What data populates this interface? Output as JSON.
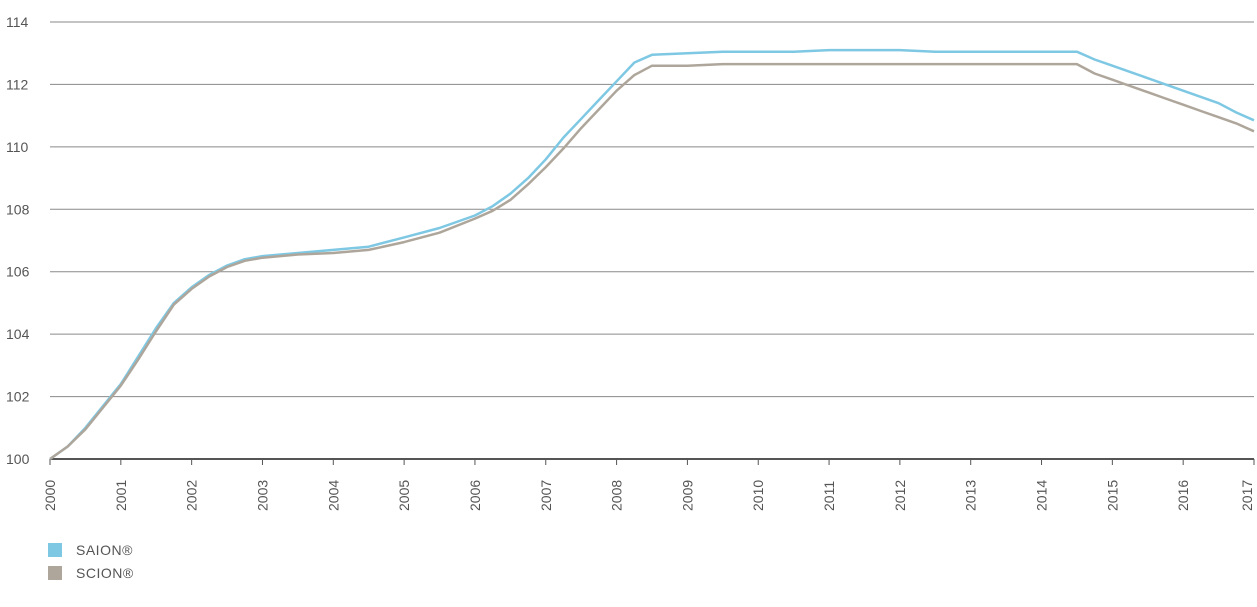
{
  "chart_data": {
    "type": "line",
    "title": "",
    "xlabel": "",
    "ylabel": "",
    "xlim": [
      2000,
      2017
    ],
    "ylim": [
      100,
      114
    ],
    "x_ticks": [
      "2000",
      "2001",
      "2002",
      "2003",
      "2004",
      "2005",
      "2006",
      "2007",
      "2008",
      "2009",
      "2010",
      "2011",
      "2012",
      "2013",
      "2014",
      "2015",
      "2016",
      "2017"
    ],
    "y_ticks": [
      "100",
      "102",
      "104",
      "106",
      "108",
      "110",
      "112",
      "114"
    ],
    "grid": "horizontal",
    "legend_position": "bottom-left",
    "series": [
      {
        "name": "SAION®",
        "color": "#7ec8e3",
        "points": [
          [
            2000.0,
            100.0
          ],
          [
            2000.25,
            100.4
          ],
          [
            2000.5,
            101.0
          ],
          [
            2000.75,
            101.7
          ],
          [
            2001.0,
            102.4
          ],
          [
            2001.25,
            103.3
          ],
          [
            2001.5,
            104.2
          ],
          [
            2001.75,
            105.0
          ],
          [
            2002.0,
            105.5
          ],
          [
            2002.25,
            105.9
          ],
          [
            2002.5,
            106.2
          ],
          [
            2002.75,
            106.4
          ],
          [
            2003.0,
            106.5
          ],
          [
            2003.5,
            106.6
          ],
          [
            2004.0,
            106.7
          ],
          [
            2004.5,
            106.8
          ],
          [
            2005.0,
            107.1
          ],
          [
            2005.5,
            107.4
          ],
          [
            2006.0,
            107.8
          ],
          [
            2006.25,
            108.1
          ],
          [
            2006.5,
            108.5
          ],
          [
            2006.75,
            109.0
          ],
          [
            2007.0,
            109.6
          ],
          [
            2007.25,
            110.3
          ],
          [
            2007.5,
            110.9
          ],
          [
            2007.75,
            111.5
          ],
          [
            2008.0,
            112.1
          ],
          [
            2008.25,
            112.7
          ],
          [
            2008.5,
            112.95
          ],
          [
            2009.0,
            113.0
          ],
          [
            2009.5,
            113.05
          ],
          [
            2010.0,
            113.05
          ],
          [
            2010.5,
            113.05
          ],
          [
            2011.0,
            113.1
          ],
          [
            2011.5,
            113.1
          ],
          [
            2012.0,
            113.1
          ],
          [
            2012.5,
            113.05
          ],
          [
            2013.0,
            113.05
          ],
          [
            2013.5,
            113.05
          ],
          [
            2014.0,
            113.05
          ],
          [
            2014.5,
            113.05
          ],
          [
            2014.75,
            112.8
          ],
          [
            2015.0,
            112.6
          ],
          [
            2015.25,
            112.4
          ],
          [
            2015.5,
            112.2
          ],
          [
            2015.75,
            112.0
          ],
          [
            2016.0,
            111.8
          ],
          [
            2016.25,
            111.6
          ],
          [
            2016.5,
            111.4
          ],
          [
            2016.75,
            111.1
          ],
          [
            2017.0,
            110.85
          ]
        ]
      },
      {
        "name": "SCION®",
        "color": "#aea69b",
        "points": [
          [
            2000.0,
            100.0
          ],
          [
            2000.25,
            100.4
          ],
          [
            2000.5,
            100.95
          ],
          [
            2000.75,
            101.65
          ],
          [
            2001.0,
            102.35
          ],
          [
            2001.25,
            103.2
          ],
          [
            2001.5,
            104.1
          ],
          [
            2001.75,
            104.95
          ],
          [
            2002.0,
            105.45
          ],
          [
            2002.25,
            105.85
          ],
          [
            2002.5,
            106.15
          ],
          [
            2002.75,
            106.35
          ],
          [
            2003.0,
            106.45
          ],
          [
            2003.5,
            106.55
          ],
          [
            2004.0,
            106.6
          ],
          [
            2004.5,
            106.7
          ],
          [
            2005.0,
            106.95
          ],
          [
            2005.5,
            107.25
          ],
          [
            2006.0,
            107.7
          ],
          [
            2006.25,
            107.95
          ],
          [
            2006.5,
            108.3
          ],
          [
            2006.75,
            108.8
          ],
          [
            2007.0,
            109.35
          ],
          [
            2007.25,
            109.95
          ],
          [
            2007.5,
            110.6
          ],
          [
            2007.75,
            111.2
          ],
          [
            2008.0,
            111.8
          ],
          [
            2008.25,
            112.3
          ],
          [
            2008.5,
            112.6
          ],
          [
            2009.0,
            112.6
          ],
          [
            2009.5,
            112.65
          ],
          [
            2010.0,
            112.65
          ],
          [
            2010.5,
            112.65
          ],
          [
            2011.0,
            112.65
          ],
          [
            2011.5,
            112.65
          ],
          [
            2012.0,
            112.65
          ],
          [
            2012.5,
            112.65
          ],
          [
            2013.0,
            112.65
          ],
          [
            2013.5,
            112.65
          ],
          [
            2014.0,
            112.65
          ],
          [
            2014.5,
            112.65
          ],
          [
            2014.75,
            112.35
          ],
          [
            2015.0,
            112.15
          ],
          [
            2015.25,
            111.95
          ],
          [
            2015.5,
            111.75
          ],
          [
            2015.75,
            111.55
          ],
          [
            2016.0,
            111.35
          ],
          [
            2016.25,
            111.15
          ],
          [
            2016.5,
            110.95
          ],
          [
            2016.75,
            110.75
          ],
          [
            2017.0,
            110.5
          ]
        ]
      }
    ]
  }
}
